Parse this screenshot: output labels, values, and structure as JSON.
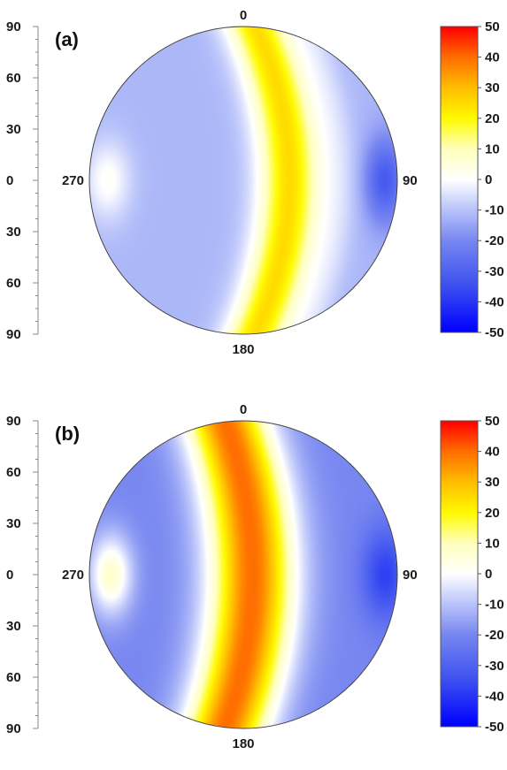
{
  "chart_data": [
    {
      "type": "heatmap",
      "panel_label": "(a)",
      "projection": "polar disc (azimuth 0 at top, 90 right, 180 bottom, 270 left)",
      "azimuth_labels": [
        "0",
        "90",
        "180",
        "270"
      ],
      "y_tick_labels": [
        "90",
        "60",
        "30",
        "0",
        "30",
        "60",
        "90"
      ],
      "colorbar": {
        "ticks": [
          "50",
          "40",
          "30",
          "20",
          "10",
          "0",
          "-10",
          "-20",
          "-30",
          "-40",
          "-50"
        ],
        "range": [
          -50,
          50
        ]
      },
      "field": {
        "base": -12,
        "bands": [
          {
            "center": 0.3,
            "width": 0.2,
            "amp": 37
          },
          {
            "center": 0.62,
            "width": 0.12,
            "amp": 6
          }
        ],
        "spots": [
          {
            "x": 0.92,
            "y": 0.0,
            "sx": 0.13,
            "sy": 0.28,
            "amp": -20
          },
          {
            "x": -0.88,
            "y": 0.0,
            "sx": 0.15,
            "sy": 0.26,
            "amp": 13
          }
        ],
        "curvature": 0.22
      }
    },
    {
      "type": "heatmap",
      "panel_label": "(b)",
      "projection": "polar disc (azimuth 0 at top, 90 right, 180 bottom, 270 left)",
      "azimuth_labels": [
        "0",
        "90",
        "180",
        "270"
      ],
      "y_tick_labels": [
        "90",
        "60",
        "30",
        "0",
        "30",
        "60",
        "90"
      ],
      "colorbar": {
        "ticks": [
          "50",
          "40",
          "30",
          "20",
          "10",
          "0",
          "-10",
          "-20",
          "-30",
          "-40",
          "-50"
        ],
        "range": [
          -50,
          50
        ]
      },
      "field": {
        "base": -20,
        "bands": [
          {
            "center": 0.06,
            "width": 0.28,
            "amp": 60
          }
        ],
        "spots": [
          {
            "x": 0.92,
            "y": 0.0,
            "sx": 0.15,
            "sy": 0.3,
            "amp": -18
          },
          {
            "x": -0.86,
            "y": 0.0,
            "sx": 0.14,
            "sy": 0.26,
            "amp": 28
          }
        ],
        "curvature": 0.18
      }
    }
  ]
}
